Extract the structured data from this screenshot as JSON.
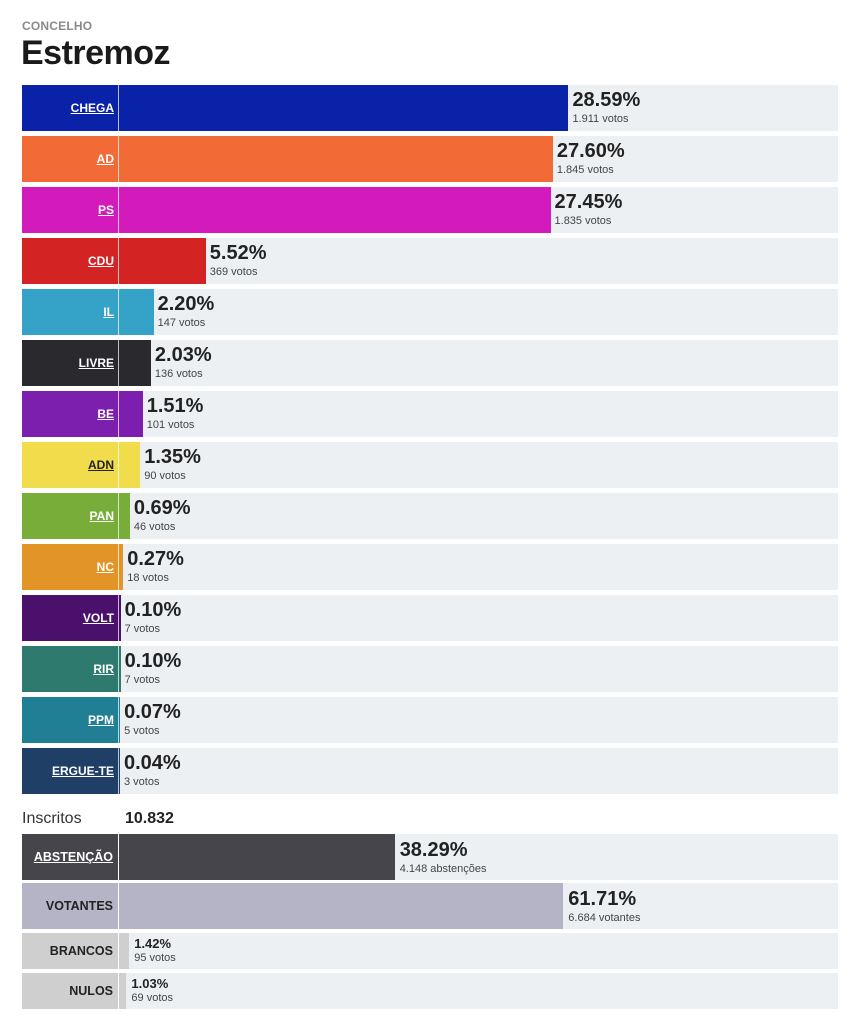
{
  "header": {
    "kicker": "CONCELHO",
    "title": "Estremoz"
  },
  "chart_data": {
    "type": "bar",
    "orientation": "horizontal",
    "xlim": [
      0,
      45.8
    ],
    "parties": [
      {
        "name": "CHEGA",
        "pct": 28.59,
        "pct_label": "28.59%",
        "votes_label": "1.911 votos",
        "color": "#0a22a8",
        "text_color": "#ffffff"
      },
      {
        "name": "AD",
        "pct": 27.6,
        "pct_label": "27.60%",
        "votes_label": "1.845 votos",
        "color": "#f26a35",
        "text_color": "#ffffff"
      },
      {
        "name": "PS",
        "pct": 27.45,
        "pct_label": "27.45%",
        "votes_label": "1.835 votos",
        "color": "#d31bbb",
        "text_color": "#ffffff"
      },
      {
        "name": "CDU",
        "pct": 5.52,
        "pct_label": "5.52%",
        "votes_label": "369 votos",
        "color": "#d42323",
        "text_color": "#ffffff"
      },
      {
        "name": "IL",
        "pct": 2.2,
        "pct_label": "2.20%",
        "votes_label": "147 votos",
        "color": "#35a2c8",
        "text_color": "#ffffff"
      },
      {
        "name": "LIVRE",
        "pct": 2.03,
        "pct_label": "2.03%",
        "votes_label": "136 votos",
        "color": "#2a2a2e",
        "text_color": "#ffffff"
      },
      {
        "name": "BE",
        "pct": 1.51,
        "pct_label": "1.51%",
        "votes_label": "101 votos",
        "color": "#7d1fae",
        "text_color": "#ffffff"
      },
      {
        "name": "ADN",
        "pct": 1.35,
        "pct_label": "1.35%",
        "votes_label": "90 votos",
        "color": "#f1dc4b",
        "text_color": "#222222"
      },
      {
        "name": "PAN",
        "pct": 0.69,
        "pct_label": "0.69%",
        "votes_label": "46 votos",
        "color": "#78ad3a",
        "text_color": "#ffffff"
      },
      {
        "name": "NC",
        "pct": 0.27,
        "pct_label": "0.27%",
        "votes_label": "18 votos",
        "color": "#e39426",
        "text_color": "#ffffff"
      },
      {
        "name": "VOLT",
        "pct": 0.1,
        "pct_label": "0.10%",
        "votes_label": "7 votos",
        "color": "#4b0f6c",
        "text_color": "#ffffff"
      },
      {
        "name": "RIR",
        "pct": 0.1,
        "pct_label": "0.10%",
        "votes_label": "7 votos",
        "color": "#2f7a6e",
        "text_color": "#ffffff"
      },
      {
        "name": "PPM",
        "pct": 0.07,
        "pct_label": "0.07%",
        "votes_label": "5 votos",
        "color": "#217f95",
        "text_color": "#ffffff"
      },
      {
        "name": "ERGUE-TE",
        "pct": 0.04,
        "pct_label": "0.04%",
        "votes_label": "3 votos",
        "color": "#1f3f66",
        "text_color": "#ffffff"
      }
    ]
  },
  "summary": {
    "inscritos_label": "Inscritos",
    "inscritos_value": "10.832",
    "rows": [
      {
        "name": "ABSTENÇÃO",
        "pct": 38.29,
        "pct_label": "38.29%",
        "sub_label": "4.148 abstenções",
        "color": "#45454b",
        "label_bg": "#45454b",
        "text_color": "#ffffff",
        "underline": true,
        "size": "big"
      },
      {
        "name": "VOTANTES",
        "pct": 61.71,
        "pct_label": "61.71%",
        "sub_label": "6.684 votantes",
        "color": "#b5b3c6",
        "label_bg": "#b5b3c6",
        "text_color": "#222222",
        "underline": false,
        "size": "big"
      },
      {
        "name": "BRANCOS",
        "pct": 1.42,
        "pct_label": "1.42%",
        "sub_label": "95 votos",
        "color": "#cfcfcf",
        "label_bg": "#cfcfcf",
        "text_color": "#222222",
        "underline": false,
        "size": "small"
      },
      {
        "name": "NULOS",
        "pct": 1.03,
        "pct_label": "1.03%",
        "sub_label": "69 votos",
        "color": "#cfcfcf",
        "label_bg": "#cfcfcf",
        "text_color": "#222222",
        "underline": false,
        "size": "small"
      }
    ],
    "xlim": [
      0,
      100
    ]
  }
}
